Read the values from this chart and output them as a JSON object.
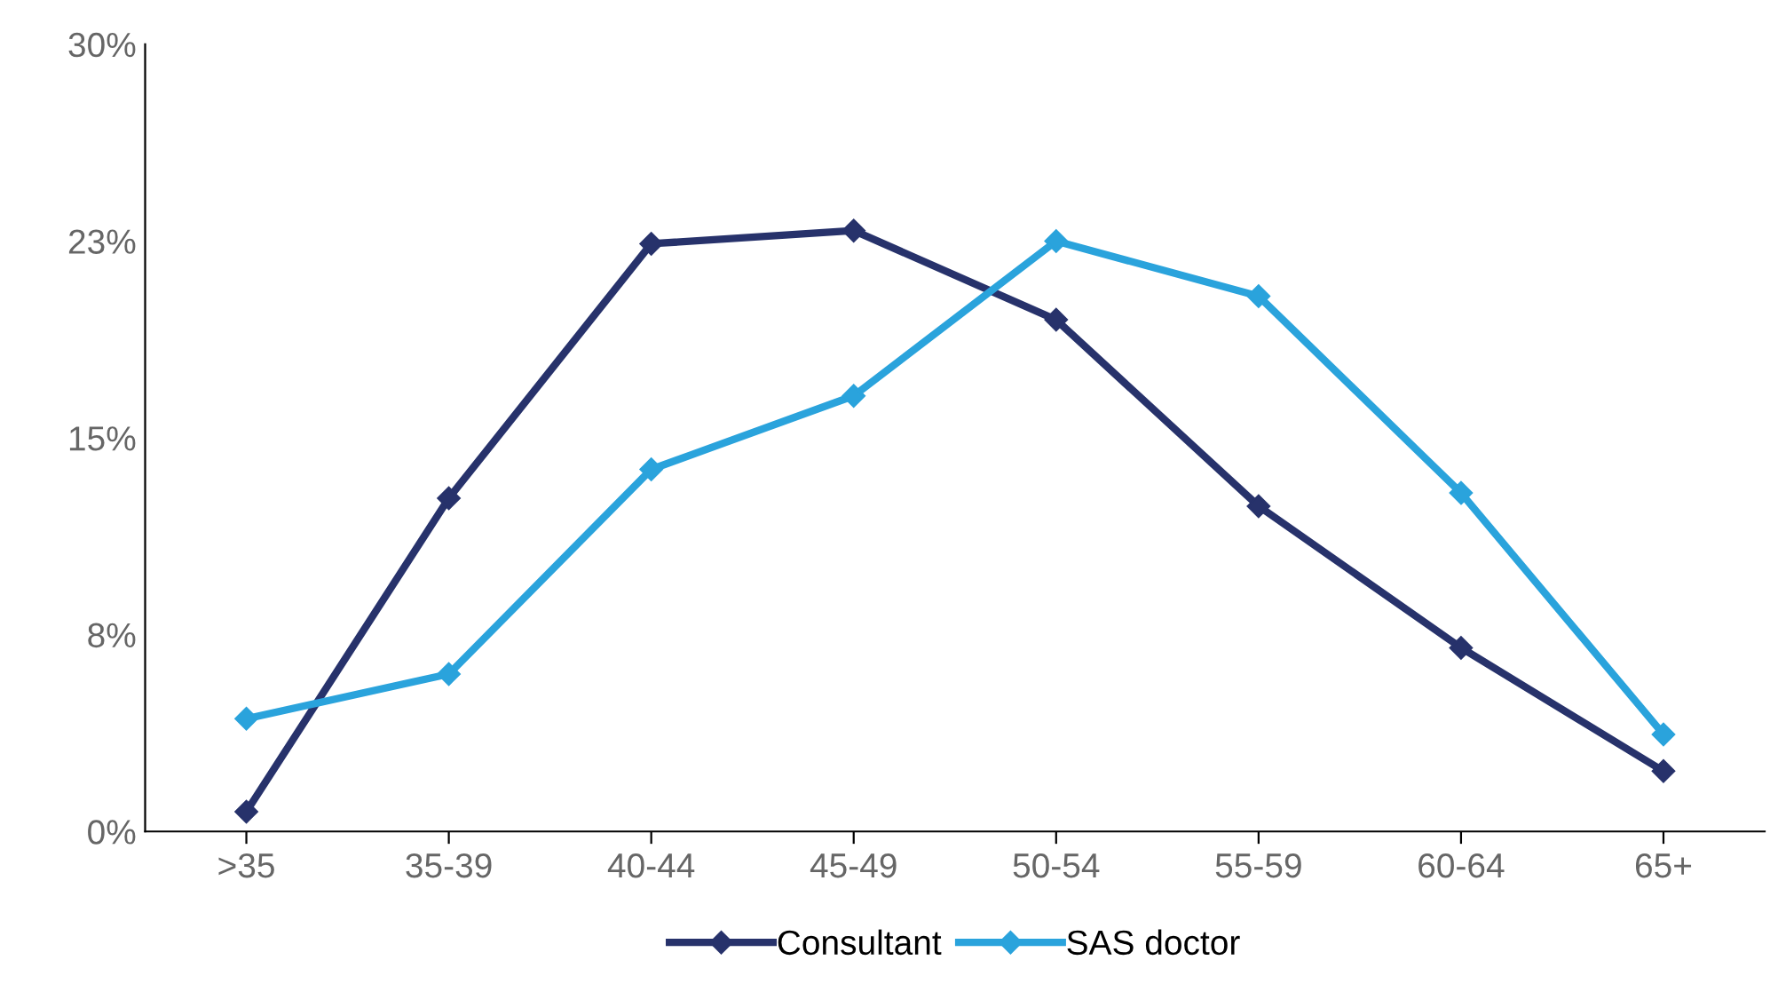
{
  "chart_data": {
    "type": "line",
    "categories": [
      ">35",
      "35-39",
      "40-44",
      "45-49",
      "50-54",
      "55-59",
      "60-64",
      "65+"
    ],
    "series": [
      {
        "name": "Consultant",
        "color": "#27326b",
        "values": [
          0.75,
          12.7,
          22.4,
          22.9,
          19.5,
          12.4,
          7.0,
          2.3
        ]
      },
      {
        "name": "SAS doctor",
        "color": "#2aa3dc",
        "values": [
          4.3,
          6.0,
          13.8,
          16.6,
          22.5,
          20.4,
          12.9,
          3.7
        ]
      }
    ],
    "ylim": [
      0,
      30
    ],
    "yticks": [
      {
        "value": 0,
        "label": "0%"
      },
      {
        "value": 7.5,
        "label": "8%"
      },
      {
        "value": 15,
        "label": "15%"
      },
      {
        "value": 22.5,
        "label": "23%"
      },
      {
        "value": 30,
        "label": "30%"
      }
    ],
    "marker": "diamond",
    "line_style": "solid",
    "grid": false,
    "legend": "bottom"
  }
}
